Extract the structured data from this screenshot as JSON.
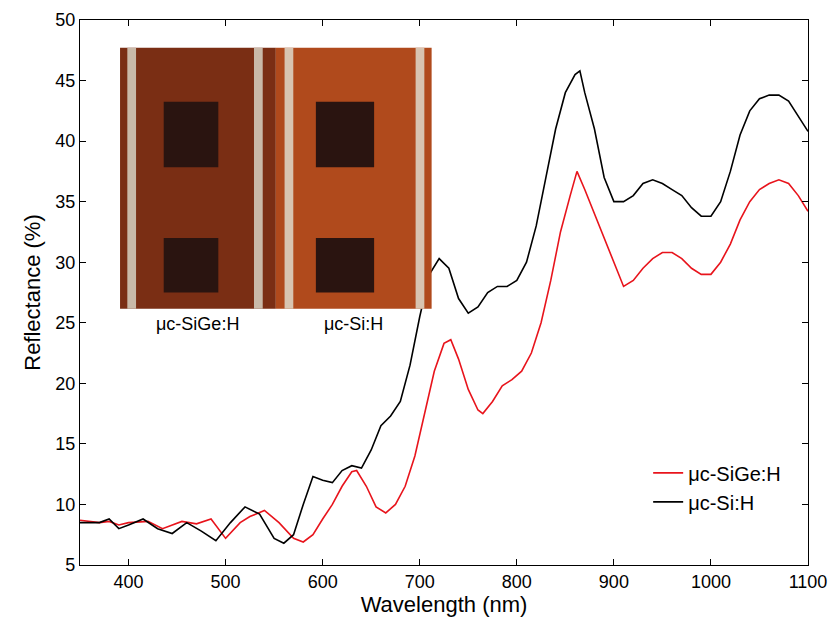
{
  "chart_data": {
    "type": "line",
    "x_label": "Wavelength (nm)",
    "y_label": "Reflectance (%)",
    "xlim": [
      350,
      1100
    ],
    "xticks": [
      400,
      500,
      600,
      700,
      800,
      900,
      1000,
      1100
    ],
    "ylim": [
      5,
      50
    ],
    "yticks": [
      5,
      10,
      15,
      20,
      25,
      30,
      35,
      40,
      45,
      50
    ],
    "grid": false,
    "legend": "lower right",
    "annotations": [
      "μc-SiGe:H",
      "μc-Si:H"
    ],
    "series": [
      {
        "name": "μc-SiGe:H",
        "color": "#e8141c",
        "x": [
          350,
          370,
          380,
          390,
          400,
          420,
          435,
          455,
          470,
          485,
          500,
          515,
          525,
          540,
          555,
          570,
          580,
          590,
          600,
          610,
          620,
          630,
          635,
          645,
          655,
          665,
          675,
          685,
          695,
          705,
          715,
          725,
          732,
          740,
          750,
          760,
          765,
          775,
          785,
          795,
          805,
          815,
          825,
          835,
          845,
          855,
          862,
          870,
          880,
          890,
          900,
          910,
          920,
          930,
          940,
          950,
          960,
          970,
          980,
          990,
          1000,
          1010,
          1020,
          1030,
          1040,
          1050,
          1060,
          1070,
          1080,
          1090,
          1100
        ],
        "values": [
          8.7,
          8.5,
          8.6,
          8.3,
          8.5,
          8.6,
          8.0,
          8.6,
          8.4,
          8.8,
          7.2,
          8.5,
          9.0,
          9.5,
          8.5,
          7.2,
          6.9,
          7.5,
          8.8,
          10.0,
          11.5,
          12.7,
          12.8,
          11.5,
          9.8,
          9.3,
          10.0,
          11.5,
          14.0,
          17.5,
          21.0,
          23.3,
          23.6,
          22.0,
          19.5,
          17.8,
          17.5,
          18.5,
          19.8,
          20.3,
          21.0,
          22.5,
          25.0,
          28.5,
          32.5,
          35.5,
          37.5,
          36.0,
          34.0,
          32.0,
          30.0,
          28.0,
          28.5,
          29.5,
          30.3,
          30.8,
          30.8,
          30.3,
          29.5,
          29.0,
          29.0,
          30.0,
          31.5,
          33.5,
          35.0,
          36.0,
          36.5,
          36.8,
          36.5,
          35.5,
          34.2
        ]
      },
      {
        "name": "μc-Si:H",
        "color": "#000000",
        "x": [
          350,
          370,
          380,
          390,
          400,
          415,
          430,
          445,
          460,
          475,
          490,
          505,
          520,
          535,
          550,
          560,
          570,
          580,
          590,
          600,
          610,
          620,
          630,
          640,
          650,
          660,
          670,
          680,
          690,
          700,
          710,
          720,
          730,
          740,
          750,
          760,
          770,
          780,
          790,
          800,
          810,
          820,
          830,
          840,
          850,
          860,
          865,
          870,
          880,
          890,
          900,
          910,
          920,
          930,
          940,
          950,
          960,
          970,
          980,
          990,
          1000,
          1010,
          1020,
          1030,
          1040,
          1050,
          1060,
          1070,
          1080,
          1090,
          1100
        ],
        "values": [
          8.5,
          8.5,
          8.8,
          8.0,
          8.3,
          8.8,
          8.0,
          7.6,
          8.5,
          7.8,
          7.0,
          8.5,
          9.8,
          9.2,
          7.2,
          6.8,
          7.5,
          10.0,
          12.3,
          12.0,
          11.8,
          12.8,
          13.2,
          13.0,
          14.5,
          16.5,
          17.3,
          18.5,
          21.5,
          25.5,
          29.0,
          30.3,
          29.5,
          27.0,
          25.8,
          26.3,
          27.5,
          28.0,
          28.0,
          28.5,
          30.0,
          33.0,
          37.0,
          41.0,
          44.0,
          45.5,
          45.8,
          44.0,
          41.0,
          37.0,
          35.0,
          35.0,
          35.5,
          36.5,
          36.8,
          36.5,
          36.0,
          35.5,
          34.5,
          33.8,
          33.8,
          35.0,
          37.5,
          40.5,
          42.5,
          43.5,
          43.8,
          43.8,
          43.3,
          42.0,
          40.8
        ]
      }
    ]
  }
}
